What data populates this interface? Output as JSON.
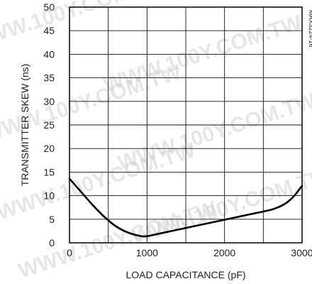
{
  "chart_data": {
    "type": "line",
    "title": "",
    "xlabel": "LOAD CAPACITANCE (pF)",
    "ylabel": "TRANSMITTER SKEW (ns)",
    "xlim": [
      0,
      3000
    ],
    "ylim": [
      0,
      50
    ],
    "x_ticks": [
      0,
      1000,
      2000,
      3000
    ],
    "x_tick_labels": [
      "0",
      "1000",
      "2000",
      "3000"
    ],
    "y_ticks": [
      0,
      5,
      10,
      15,
      20,
      25,
      30,
      35,
      40,
      45,
      50
    ],
    "y_tick_labels": [
      "0",
      "5",
      "10",
      "15",
      "20",
      "25",
      "30",
      "35",
      "40",
      "45",
      "50"
    ],
    "grid": true,
    "x_minor_gridlines": [
      500,
      1500,
      2500
    ],
    "figure_id": "MAX3224-16",
    "series": [
      {
        "x": [
          0,
          150,
          300,
          450,
          600,
          750,
          900,
          1000,
          1200,
          1400,
          1600,
          1800,
          2000,
          2200,
          2400,
          2600,
          2700,
          2800,
          2900,
          3000
        ],
        "y": [
          13.6,
          10.8,
          8.0,
          5.5,
          3.5,
          2.2,
          1.5,
          1.4,
          2.1,
          2.8,
          3.5,
          4.2,
          4.9,
          5.6,
          6.3,
          7.0,
          7.6,
          8.5,
          10.0,
          12.1
        ]
      }
    ],
    "watermark": "WWW.100Y.COM.TW"
  }
}
